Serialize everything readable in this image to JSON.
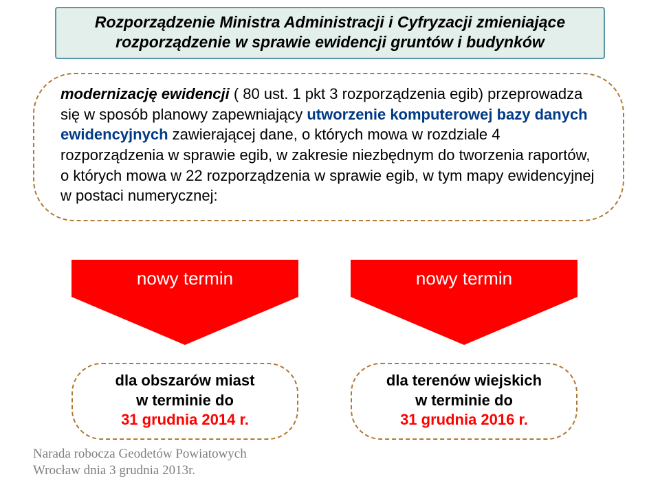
{
  "title": {
    "line1": "Rozporządzenie Ministra Administracji i Cyfryzacji zmieniające",
    "line2": "rozporządzenie w sprawie ewidencji gruntów i budynków"
  },
  "main": {
    "mod_label": "modernizację ewidencji",
    "text1a": " (  80 ust. 1 pkt 3 rozporządzenia egib) przeprowadza się w sposób planowy zapewniający ",
    "hl1": "utworzenie komputerowej bazy danych ewidencyjnych",
    "text1b": " zawierającej dane, o których mowa w rozdziale 4 rozporządzenia w sprawie egib, w zakresie niezbędnym do tworzenia raportów, o których mowa w   22 rozporządzenia w sprawie egib, w tym mapy ewidencyjnej w postaci numerycznej:"
  },
  "arrows": {
    "left_label": "nowy termin",
    "right_label": "nowy termin"
  },
  "boxes": {
    "left": {
      "line1a": "dla obszarów miast",
      "line1b": "w terminie do",
      "line2": "31 grudnia 2014 r."
    },
    "right": {
      "line1a": "dla terenów wiejskich",
      "line1b": "w terminie do",
      "line2": "31 grudnia 2016 r."
    }
  },
  "footer": {
    "line1": "Narada robocza Geodetów Powiatowych",
    "line2": "Wrocław dnia 3 grudnia 2013r."
  },
  "colors": {
    "title_bg": "#e2efeb",
    "title_border": "#5a96a5",
    "dashed_border": "#b07830",
    "arrow": "#ff0000",
    "highlight_blue": "#003a86",
    "footer_text": "#7f7f7f"
  }
}
